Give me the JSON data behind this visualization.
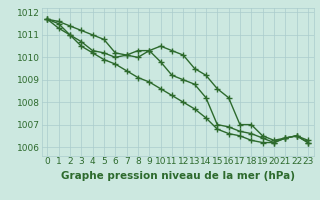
{
  "xlabel": "Graphe pression niveau de la mer (hPa)",
  "x_hours": [
    0,
    1,
    2,
    3,
    4,
    5,
    6,
    7,
    8,
    9,
    10,
    11,
    12,
    13,
    14,
    15,
    16,
    17,
    18,
    19,
    20,
    21,
    22,
    23
  ],
  "line1": [
    1011.7,
    1011.6,
    1011.4,
    1011.2,
    1011.0,
    1010.8,
    1010.2,
    1010.1,
    1010.3,
    1010.3,
    1010.5,
    1010.3,
    1010.1,
    1009.5,
    1009.2,
    1008.6,
    1008.2,
    1007.0,
    1007.0,
    1006.5,
    1006.3,
    1006.4,
    1006.5,
    1006.3
  ],
  "line2": [
    1011.7,
    1011.5,
    1011.0,
    1010.7,
    1010.3,
    1010.2,
    1010.0,
    1010.1,
    1010.0,
    1010.3,
    1009.8,
    1009.2,
    1009.0,
    1008.8,
    1008.2,
    1007.0,
    1006.9,
    1006.7,
    1006.6,
    1006.4,
    1006.2,
    1006.4,
    1006.5,
    1006.2
  ],
  "line3": [
    1011.7,
    1011.3,
    1011.0,
    1010.5,
    1010.2,
    1009.9,
    1009.7,
    1009.4,
    1009.1,
    1008.9,
    1008.6,
    1008.3,
    1008.0,
    1007.7,
    1007.3,
    1006.8,
    1006.6,
    1006.5,
    1006.3,
    1006.2,
    1006.2,
    1006.4,
    1006.5,
    1006.2
  ],
  "ylim": [
    1005.6,
    1012.2
  ],
  "yticks": [
    1006,
    1007,
    1008,
    1009,
    1010,
    1011,
    1012
  ],
  "line_color": "#2d6a2d",
  "bg_color": "#cce8e0",
  "grid_color": "#aacccc",
  "label_color": "#2d6a2d",
  "marker": "+",
  "markersize": 4,
  "linewidth": 1.0,
  "xlabel_fontsize": 7.5,
  "tick_fontsize": 6.5
}
